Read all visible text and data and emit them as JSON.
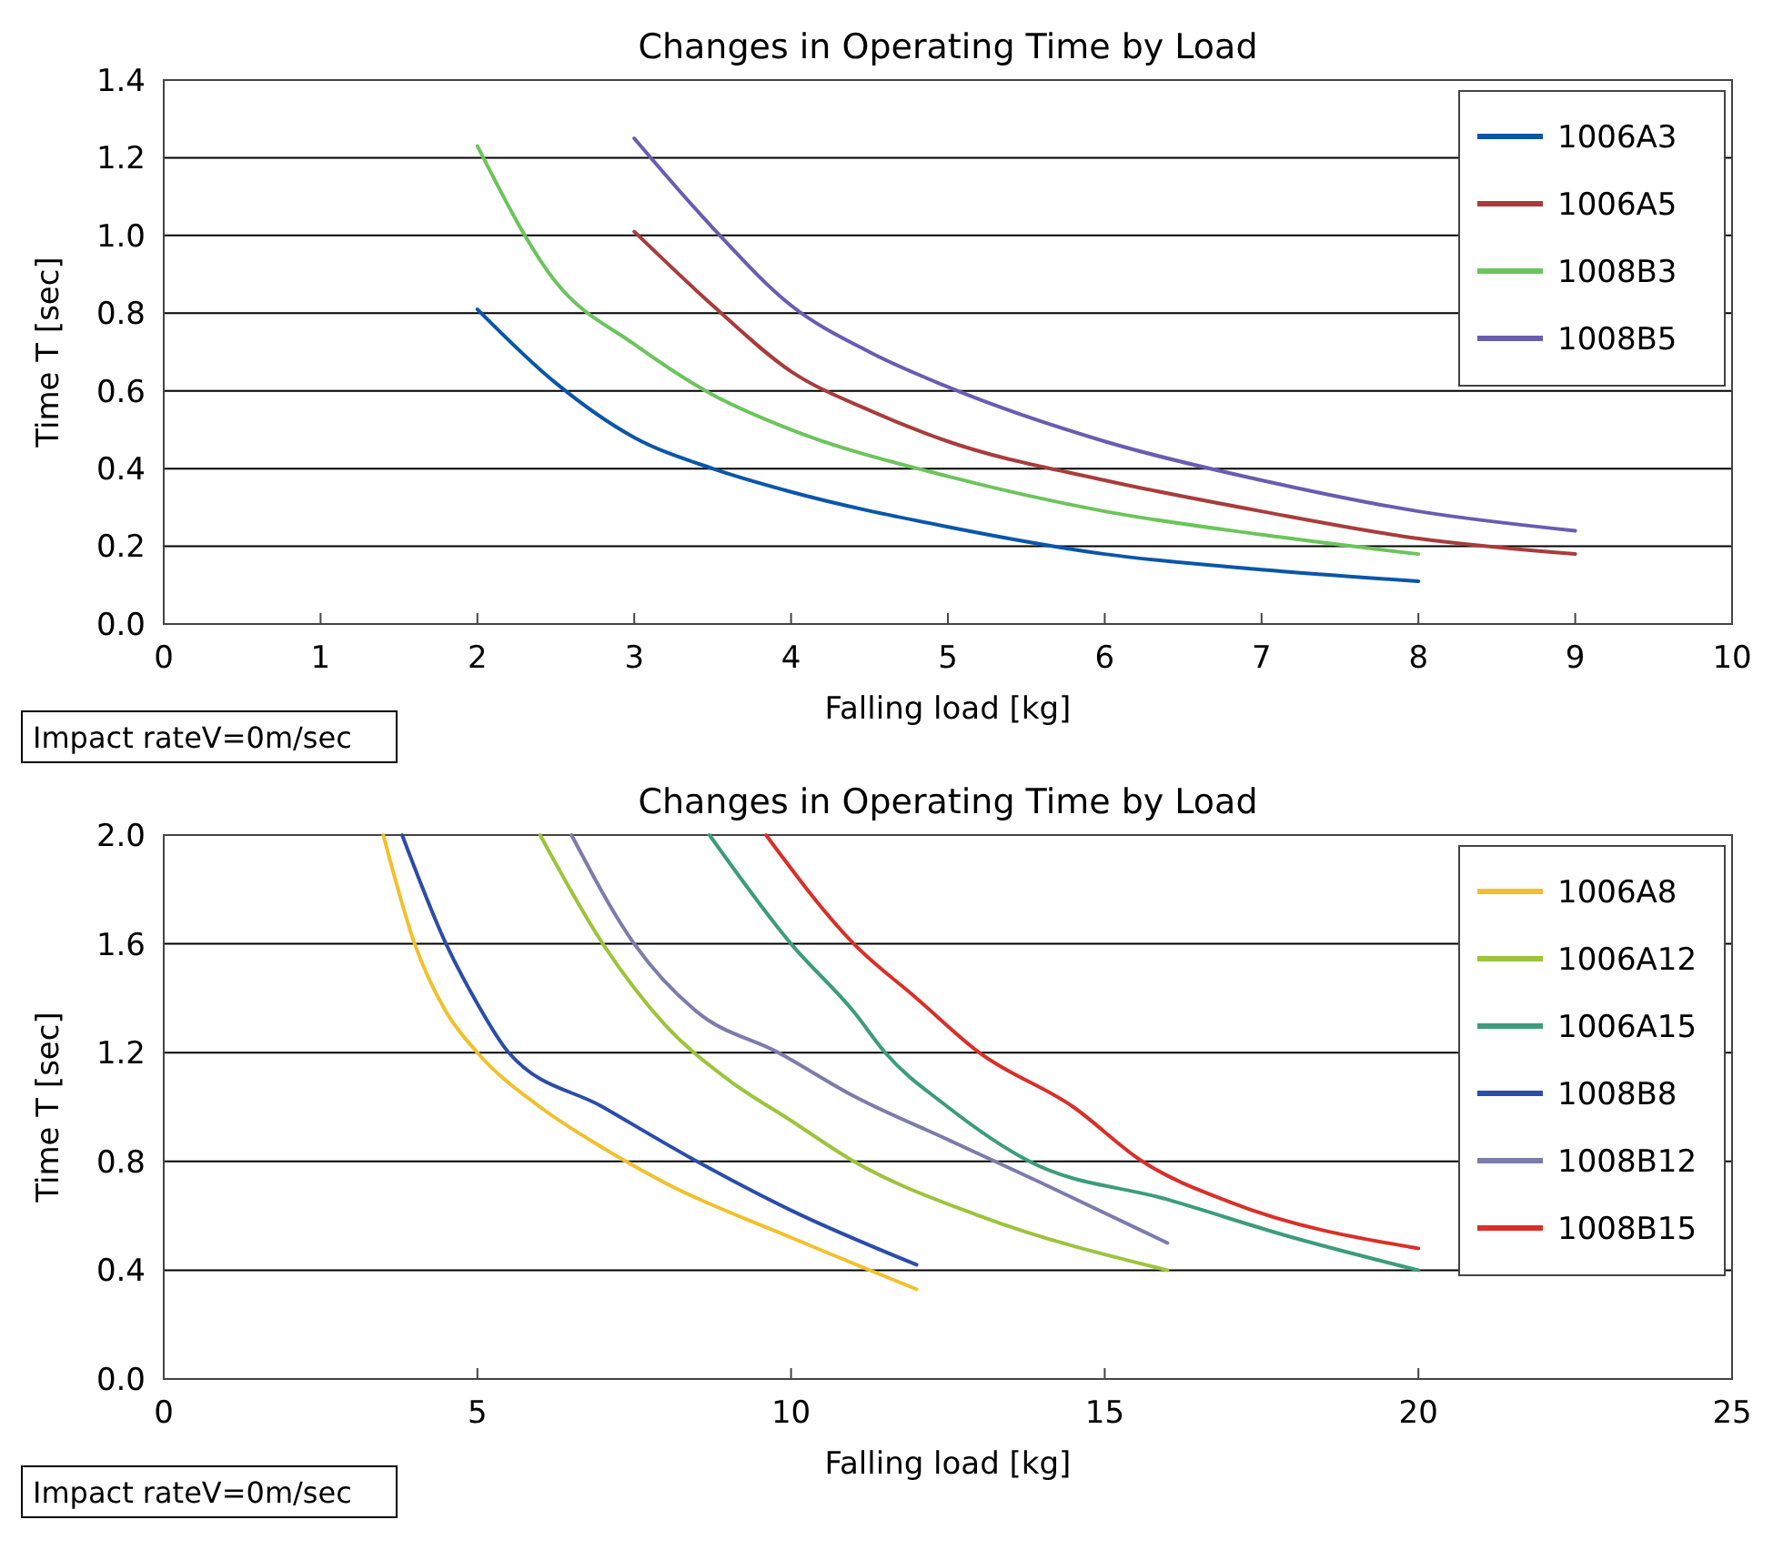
{
  "chart_data": [
    {
      "type": "line",
      "title": "Changes in Operating Time by Load",
      "xlabel": "Falling load [kg]",
      "ylabel": "Time T [sec]",
      "xlim": [
        0,
        10
      ],
      "xticks": [
        0,
        1,
        2,
        3,
        4,
        5,
        6,
        7,
        8,
        9,
        10
      ],
      "ylim": [
        0,
        1.4
      ],
      "yticks": [
        {
          "value": 0,
          "label": "0.0"
        },
        {
          "value": 0.2,
          "label": "0.2"
        },
        {
          "value": 0.4,
          "label": "0.4"
        },
        {
          "value": 0.6,
          "label": "0.6"
        },
        {
          "value": 0.8,
          "label": "0.8"
        },
        {
          "value": 1,
          "label": "1.0"
        },
        {
          "value": 1.2,
          "label": "1.2"
        },
        {
          "value": 1.4,
          "label": "1.4"
        }
      ],
      "grid": "y",
      "legend": "top right",
      "annotations": [
        "Impact rateV=0m/sec"
      ],
      "series": [
        {
          "name": "1006A3",
          "color": "#0a56a8",
          "x": [
            2,
            2.5,
            3,
            3.5,
            4,
            5,
            6,
            7,
            8
          ],
          "values": [
            0.81,
            0.62,
            0.48,
            0.4,
            0.34,
            0.25,
            0.18,
            0.14,
            0.11
          ]
        },
        {
          "name": "1006A5",
          "color": "#a83c3c",
          "x": [
            3,
            3.5,
            4,
            4.5,
            5,
            6,
            7,
            8,
            9
          ],
          "values": [
            1.01,
            0.82,
            0.65,
            0.55,
            0.47,
            0.37,
            0.29,
            0.22,
            0.18
          ]
        },
        {
          "name": "1008B3",
          "color": "#6cc45c",
          "x": [
            2,
            2.5,
            3,
            3.5,
            4,
            5,
            6,
            7,
            8
          ],
          "values": [
            1.23,
            0.88,
            0.72,
            0.59,
            0.5,
            0.38,
            0.29,
            0.23,
            0.18
          ]
        },
        {
          "name": "1008B5",
          "color": "#6a5cb0",
          "x": [
            3,
            3.5,
            4,
            4.5,
            5,
            6,
            7,
            8,
            9
          ],
          "values": [
            1.25,
            1.02,
            0.82,
            0.7,
            0.61,
            0.47,
            0.37,
            0.29,
            0.24
          ]
        }
      ]
    },
    {
      "type": "line",
      "title": "Changes in Operating Time by Load",
      "xlabel": "Falling load [kg]",
      "ylabel": "Time T [sec]",
      "xlim": [
        0,
        25
      ],
      "xticks": [
        0,
        5,
        10,
        15,
        20,
        25
      ],
      "ylim": [
        0,
        2
      ],
      "yticks": [
        {
          "value": 0,
          "label": "0.0"
        },
        {
          "value": 0.4,
          "label": "0.4"
        },
        {
          "value": 0.8,
          "label": "0.8"
        },
        {
          "value": 1.2,
          "label": "1.2"
        },
        {
          "value": 1.6,
          "label": "1.6"
        },
        {
          "value": 2,
          "label": "2.0"
        }
      ],
      "grid": "y",
      "legend": "top right",
      "annotations": [
        "Impact rateV=0m/sec"
      ],
      "series": [
        {
          "name": "1006A8",
          "color": "#f2c02c",
          "x": [
            3.5,
            4,
            4.5,
            5,
            6,
            7,
            8,
            10,
            12
          ],
          "values": [
            2.0,
            1.6,
            1.35,
            1.2,
            1.0,
            0.85,
            0.72,
            0.52,
            0.33
          ]
        },
        {
          "name": "1006A12",
          "color": "#9cc43c",
          "x": [
            6,
            7,
            8,
            9,
            10,
            11,
            13,
            16
          ],
          "values": [
            2.0,
            1.6,
            1.3,
            1.1,
            0.95,
            0.8,
            0.6,
            0.4
          ]
        },
        {
          "name": "1006A15",
          "color": "#3c9c7c",
          "x": [
            8.7,
            10,
            11,
            11.5,
            12.5,
            13.8,
            16,
            18,
            20
          ],
          "values": [
            2.0,
            1.6,
            1.35,
            1.2,
            1.0,
            0.8,
            0.66,
            0.52,
            0.4
          ]
        },
        {
          "name": "1008B8",
          "color": "#2c4ca8",
          "x": [
            3.8,
            4.5,
            5,
            5.5,
            7,
            8.5,
            10,
            12
          ],
          "values": [
            2.0,
            1.6,
            1.38,
            1.2,
            1.0,
            0.8,
            0.62,
            0.42
          ]
        },
        {
          "name": "1008B12",
          "color": "#7c7cac",
          "x": [
            6.5,
            7.5,
            8.5,
            9.8,
            11,
            12.5,
            14,
            16
          ],
          "values": [
            2.0,
            1.6,
            1.35,
            1.2,
            1.04,
            0.88,
            0.72,
            0.5
          ]
        },
        {
          "name": "1008B15",
          "color": "#d83028",
          "x": [
            9.6,
            11,
            12,
            13,
            14.5,
            15.6,
            17,
            20
          ],
          "values": [
            2.0,
            1.6,
            1.4,
            1.2,
            1.0,
            0.8,
            0.65,
            0.48
          ]
        }
      ]
    }
  ]
}
